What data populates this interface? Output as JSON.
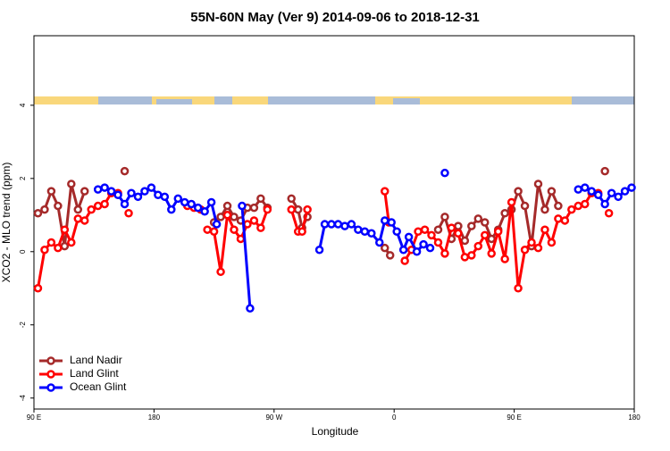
{
  "chart_data": {
    "type": "line",
    "title": "55N-60N May (Ver 9)   2014-09-06 to 2018-12-31",
    "x_label": "Longitude",
    "y_label": "XCO2 - MLO trend (ppm)",
    "xlim": [
      90,
      540
    ],
    "ylim": [
      -4.3,
      5.9
    ],
    "xticks": [
      {
        "value": 90,
        "label": "90 E"
      },
      {
        "value": 180,
        "label": "180"
      },
      {
        "value": 270,
        "label": "90 W"
      },
      {
        "value": 360,
        "label": "0"
      },
      {
        "value": 450,
        "label": "90 E"
      },
      {
        "value": 540,
        "label": "180"
      }
    ],
    "yticks": [
      -4,
      -2,
      0,
      2,
      4
    ],
    "legend": "bottom-left",
    "series": [
      {
        "name": "Land Nadir",
        "color": "#a52a2a",
        "x": [
          93,
          98,
          103,
          108,
          113,
          118,
          123,
          128,
          null,
          158,
          null,
          225,
          230,
          235,
          240,
          245,
          250,
          255,
          260,
          265,
          null,
          283,
          288,
          291,
          295,
          null,
          353,
          357,
          null,
          393,
          398,
          403,
          408,
          413,
          418,
          423,
          428,
          433,
          438,
          443,
          448,
          453,
          458,
          463,
          468,
          473,
          478,
          483,
          null,
          518
        ],
        "values": [
          1.05,
          1.15,
          1.65,
          1.25,
          0.15,
          1.85,
          1.15,
          1.65,
          null,
          2.2,
          null,
          0.8,
          0.95,
          1.25,
          0.95,
          0.85,
          1.2,
          1.2,
          1.45,
          1.2,
          null,
          1.45,
          1.15,
          0.65,
          0.95,
          null,
          0.1,
          -0.1,
          null,
          0.6,
          0.95,
          0.35,
          0.7,
          0.3,
          0.7,
          0.9,
          0.8,
          0.35,
          0.6,
          1.05,
          1.15,
          1.65,
          1.25,
          0.15,
          1.85,
          1.15,
          1.65,
          1.25,
          null,
          2.2
        ]
      },
      {
        "name": "Land Glint",
        "color": "#ff0000",
        "x": [
          93,
          98,
          103,
          108,
          113,
          118,
          123,
          128,
          133,
          138,
          143,
          148,
          153,
          null,
          161,
          null,
          205,
          210,
          215,
          null,
          220,
          225,
          230,
          235,
          240,
          245,
          250,
          255,
          260,
          265,
          null,
          283,
          288,
          291,
          295,
          null,
          353,
          356,
          null,
          368,
          373,
          378,
          383,
          388,
          393,
          398,
          403,
          408,
          413,
          418,
          423,
          428,
          433,
          438,
          443,
          448,
          453,
          458,
          463,
          468,
          473,
          478,
          483,
          488,
          493,
          498,
          503,
          508,
          513,
          null,
          521
        ],
        "values": [
          -1.0,
          0.05,
          0.25,
          0.1,
          0.6,
          0.25,
          0.9,
          0.85,
          1.15,
          1.25,
          1.3,
          1.6,
          1.6,
          null,
          1.05,
          null,
          1.25,
          1.2,
          1.15,
          null,
          0.6,
          0.55,
          -0.55,
          1.0,
          0.6,
          0.35,
          0.75,
          0.85,
          0.65,
          1.15,
          null,
          1.15,
          0.55,
          0.55,
          1.15,
          null,
          1.65,
          0.8,
          null,
          -0.25,
          0.05,
          0.55,
          0.6,
          0.45,
          0.25,
          -0.05,
          0.65,
          0.5,
          -0.15,
          -0.1,
          0.15,
          0.45,
          -0.05,
          0.55,
          -0.2,
          1.35,
          -1.0,
          0.05,
          0.25,
          0.1,
          0.6,
          0.25,
          0.9,
          0.85,
          1.15,
          1.25,
          1.3,
          1.6,
          1.6,
          null,
          1.05
        ]
      },
      {
        "name": "Ocean Glint",
        "color": "#0000ff",
        "x": [
          138,
          143,
          148,
          153,
          158,
          163,
          168,
          173,
          178,
          183,
          188,
          193,
          198,
          203,
          208,
          213,
          218,
          223,
          227,
          null,
          246,
          252,
          null,
          304,
          308,
          313,
          318,
          323,
          328,
          333,
          338,
          343,
          349,
          353,
          358,
          362,
          367,
          371,
          377,
          382,
          387,
          null,
          398,
          null,
          498,
          503,
          508,
          513,
          518,
          523,
          528,
          533,
          538
        ],
        "values": [
          1.7,
          1.75,
          1.65,
          1.55,
          1.3,
          1.6,
          1.5,
          1.65,
          1.75,
          1.55,
          1.5,
          1.15,
          1.45,
          1.35,
          1.3,
          1.2,
          1.1,
          1.35,
          0.75,
          null,
          1.25,
          -1.55,
          null,
          0.05,
          0.75,
          0.75,
          0.75,
          0.7,
          0.75,
          0.6,
          0.55,
          0.5,
          0.25,
          0.85,
          0.8,
          0.55,
          0.05,
          0.4,
          0.0,
          0.2,
          0.1,
          null,
          2.15,
          null,
          1.7,
          1.75,
          1.65,
          1.55,
          1.3,
          1.6,
          1.5,
          1.65,
          1.75
        ]
      }
    ]
  }
}
